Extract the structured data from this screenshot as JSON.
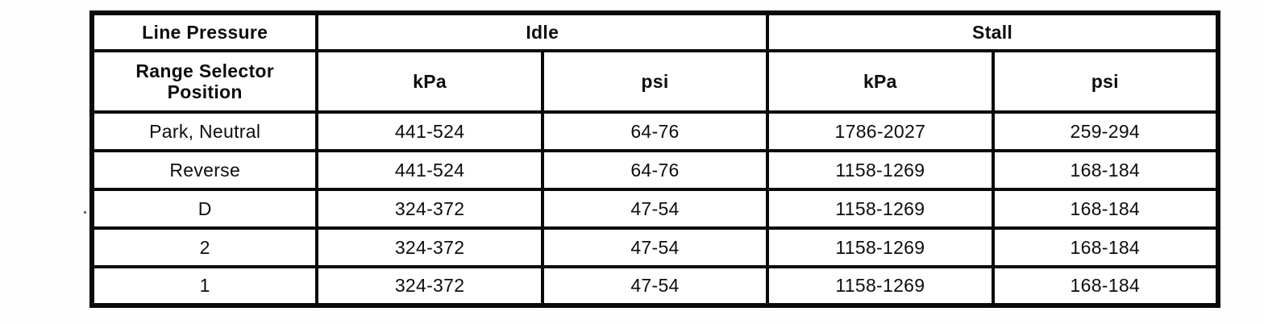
{
  "colors": {
    "ink": "#0a0a0a",
    "paper": "#ffffff"
  },
  "table": {
    "corner_header": "Line Pressure",
    "row_header_title": "Range Selector Position",
    "groups": [
      {
        "label": "Idle"
      },
      {
        "label": "Stall"
      }
    ],
    "unit_headers": [
      "kPa",
      "psi",
      "kPa",
      "psi"
    ],
    "rows": [
      {
        "selector": "Park, Neutral",
        "idle_kpa": "441-524",
        "idle_psi": "64-76",
        "stall_kpa": "1786-2027",
        "stall_psi": "259-294"
      },
      {
        "selector": "Reverse",
        "idle_kpa": "441-524",
        "idle_psi": "64-76",
        "stall_kpa": "1158-1269",
        "stall_psi": "168-184"
      },
      {
        "selector": "D",
        "idle_kpa": "324-372",
        "idle_psi": "47-54",
        "stall_kpa": "1158-1269",
        "stall_psi": "168-184"
      },
      {
        "selector": "2",
        "idle_kpa": "324-372",
        "idle_psi": "47-54",
        "stall_kpa": "1158-1269",
        "stall_psi": "168-184"
      },
      {
        "selector": "1",
        "idle_kpa": "324-372",
        "idle_psi": "47-54",
        "stall_kpa": "1158-1269",
        "stall_psi": "168-184"
      }
    ]
  }
}
